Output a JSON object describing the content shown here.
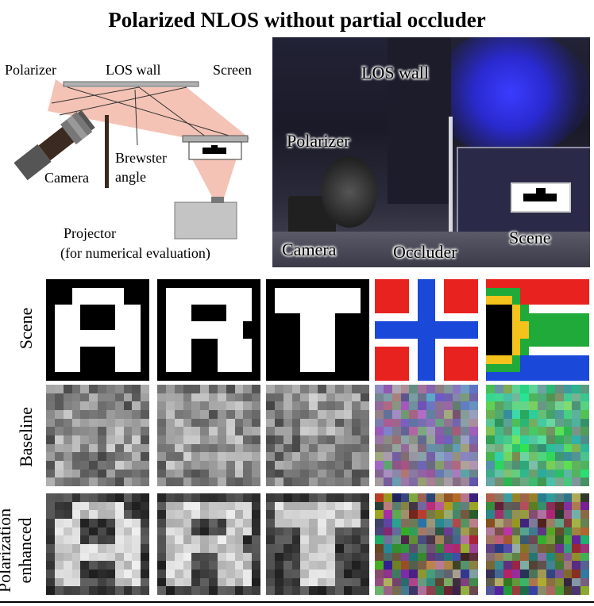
{
  "title": "Polarized NLOS without partial occluder",
  "diagram": {
    "polarizer": "Polarizer",
    "los_wall": "LOS wall",
    "screen": "Screen",
    "camera": "Camera",
    "brewster_line1": "Brewster",
    "brewster_line2": "angle",
    "projector": "Projector",
    "projector_note": "(for numerical evaluation)"
  },
  "photo": {
    "los_wall": "LOS wall",
    "polarizer": "Polarizer",
    "camera": "Camera",
    "occluder": "Occluder",
    "scene": "Scene"
  },
  "rows": {
    "scene": "Scene",
    "baseline": "Baseline",
    "enhanced_line1": "Polarization",
    "enhanced_line2": "enhanced"
  },
  "colors": {
    "beam": "#f2b8a8",
    "wall": "#b0b0b0",
    "red": "#e8231f",
    "blue": "#1a48d8",
    "green": "#1faa3a",
    "yellow": "#f4c21c"
  }
}
